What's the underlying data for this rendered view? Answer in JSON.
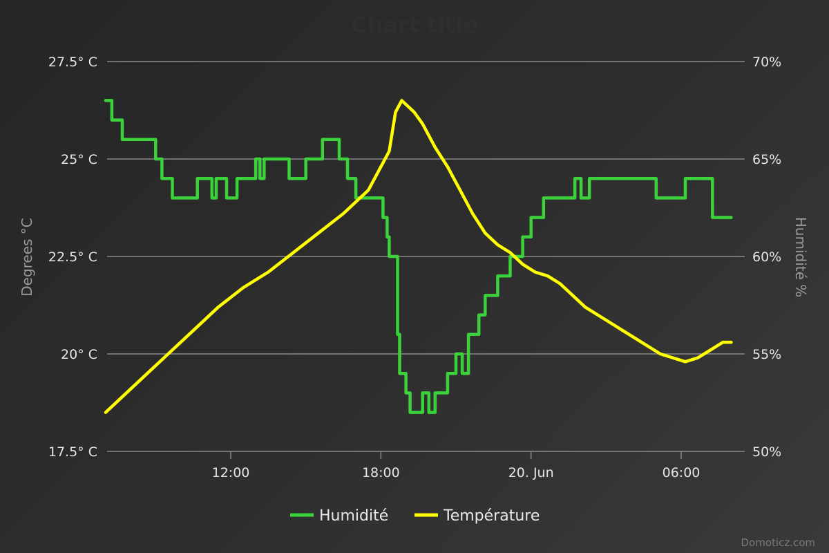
{
  "chart_data": {
    "type": "line",
    "title": "Chart title",
    "y_left": {
      "title": "Degrees °C",
      "ticks": [
        17.5,
        20,
        22.5,
        25,
        27.5
      ],
      "tick_labels": [
        "17.5° C",
        "20° C",
        "22.5° C",
        "25° C",
        "27.5° C"
      ],
      "range": [
        17.5,
        27.5
      ]
    },
    "y_right": {
      "title": "Humidité %",
      "ticks": [
        50,
        55,
        60,
        65,
        70
      ],
      "tick_labels": [
        "50%",
        "55%",
        "60%",
        "65%",
        "70%"
      ],
      "range": [
        50,
        70
      ]
    },
    "x_axis": {
      "start": "06-19 07:00",
      "end": "06-20 09:00",
      "ticks": [
        "12:00",
        "18:00",
        "20. Jun",
        "06:00"
      ]
    },
    "grid": true,
    "legend_position": "bottom-center",
    "series": [
      {
        "name": "Humidité",
        "color": "#3bd23b",
        "axis": "right",
        "step": true,
        "points": [
          [
            "06-19 07:00",
            68
          ],
          [
            "06-19 07:15",
            67
          ],
          [
            "06-19 07:40",
            66
          ],
          [
            "06-19 09:00",
            65
          ],
          [
            "06-19 09:15",
            64
          ],
          [
            "06-19 09:40",
            63
          ],
          [
            "06-19 10:40",
            64
          ],
          [
            "06-19 11:15",
            63
          ],
          [
            "06-19 11:25",
            64
          ],
          [
            "06-19 11:50",
            63
          ],
          [
            "06-19 12:15",
            64
          ],
          [
            "06-19 13:00",
            65
          ],
          [
            "06-19 13:10",
            64
          ],
          [
            "06-19 13:20",
            65
          ],
          [
            "06-19 14:20",
            64
          ],
          [
            "06-19 15:00",
            65
          ],
          [
            "06-19 15:40",
            66
          ],
          [
            "06-19 16:20",
            65
          ],
          [
            "06-19 16:40",
            64
          ],
          [
            "06-19 17:00",
            63
          ],
          [
            "06-19 18:05",
            62
          ],
          [
            "06-19 18:15",
            61
          ],
          [
            "06-19 18:20",
            60
          ],
          [
            "06-19 18:40",
            56
          ],
          [
            "06-19 18:45",
            54
          ],
          [
            "06-19 19:00",
            53
          ],
          [
            "06-19 19:10",
            52
          ],
          [
            "06-19 19:40",
            53
          ],
          [
            "06-19 19:55",
            52
          ],
          [
            "06-19 20:10",
            53
          ],
          [
            "06-19 20:40",
            54
          ],
          [
            "06-19 21:00",
            55
          ],
          [
            "06-19 21:15",
            54
          ],
          [
            "06-19 21:30",
            56
          ],
          [
            "06-19 21:55",
            57
          ],
          [
            "06-19 22:10",
            58
          ],
          [
            "06-19 22:40",
            59
          ],
          [
            "06-19 23:10",
            60
          ],
          [
            "06-19 23:40",
            61
          ],
          [
            "06-20 00:00",
            62
          ],
          [
            "06-20 00:30",
            63
          ],
          [
            "06-20 01:10",
            63
          ],
          [
            "06-20 01:45",
            64
          ],
          [
            "06-20 02:00",
            63
          ],
          [
            "06-20 02:20",
            64
          ],
          [
            "06-20 05:00",
            63
          ],
          [
            "06-20 06:10",
            64
          ],
          [
            "06-20 07:15",
            62
          ],
          [
            "06-20 08:00",
            62
          ]
        ]
      },
      {
        "name": "Température",
        "color": "#ffff00",
        "axis": "left",
        "step": false,
        "points": [
          [
            "06-19 07:00",
            18.5
          ],
          [
            "06-19 07:30",
            18.8
          ],
          [
            "06-19 08:30",
            19.4
          ],
          [
            "06-19 09:30",
            20.0
          ],
          [
            "06-19 10:30",
            20.6
          ],
          [
            "06-19 11:30",
            21.2
          ],
          [
            "06-19 12:30",
            21.7
          ],
          [
            "06-19 13:30",
            22.1
          ],
          [
            "06-19 14:30",
            22.6
          ],
          [
            "06-19 15:30",
            23.1
          ],
          [
            "06-19 16:30",
            23.6
          ],
          [
            "06-19 17:30",
            24.2
          ],
          [
            "06-19 18:00",
            24.8
          ],
          [
            "06-19 18:20",
            25.2
          ],
          [
            "06-19 18:35",
            26.2
          ],
          [
            "06-19 18:50",
            26.5
          ],
          [
            "06-19 19:20",
            26.2
          ],
          [
            "06-19 19:40",
            25.9
          ],
          [
            "06-19 20:10",
            25.3
          ],
          [
            "06-19 20:40",
            24.8
          ],
          [
            "06-19 21:10",
            24.2
          ],
          [
            "06-19 21:40",
            23.6
          ],
          [
            "06-19 22:10",
            23.1
          ],
          [
            "06-19 22:40",
            22.8
          ],
          [
            "06-19 23:10",
            22.6
          ],
          [
            "06-19 23:40",
            22.3
          ],
          [
            "06-20 00:10",
            22.1
          ],
          [
            "06-20 00:40",
            22.0
          ],
          [
            "06-20 01:10",
            21.8
          ],
          [
            "06-20 01:40",
            21.5
          ],
          [
            "06-20 02:10",
            21.2
          ],
          [
            "06-20 02:40",
            21.0
          ],
          [
            "06-20 03:10",
            20.8
          ],
          [
            "06-20 03:40",
            20.6
          ],
          [
            "06-20 04:10",
            20.4
          ],
          [
            "06-20 04:40",
            20.2
          ],
          [
            "06-20 05:10",
            20.0
          ],
          [
            "06-20 05:40",
            19.9
          ],
          [
            "06-20 06:10",
            19.8
          ],
          [
            "06-20 06:40",
            19.9
          ],
          [
            "06-20 07:10",
            20.1
          ],
          [
            "06-20 07:40",
            20.3
          ],
          [
            "06-20 08:00",
            20.3
          ]
        ]
      }
    ],
    "credits": "Domoticz.com"
  }
}
